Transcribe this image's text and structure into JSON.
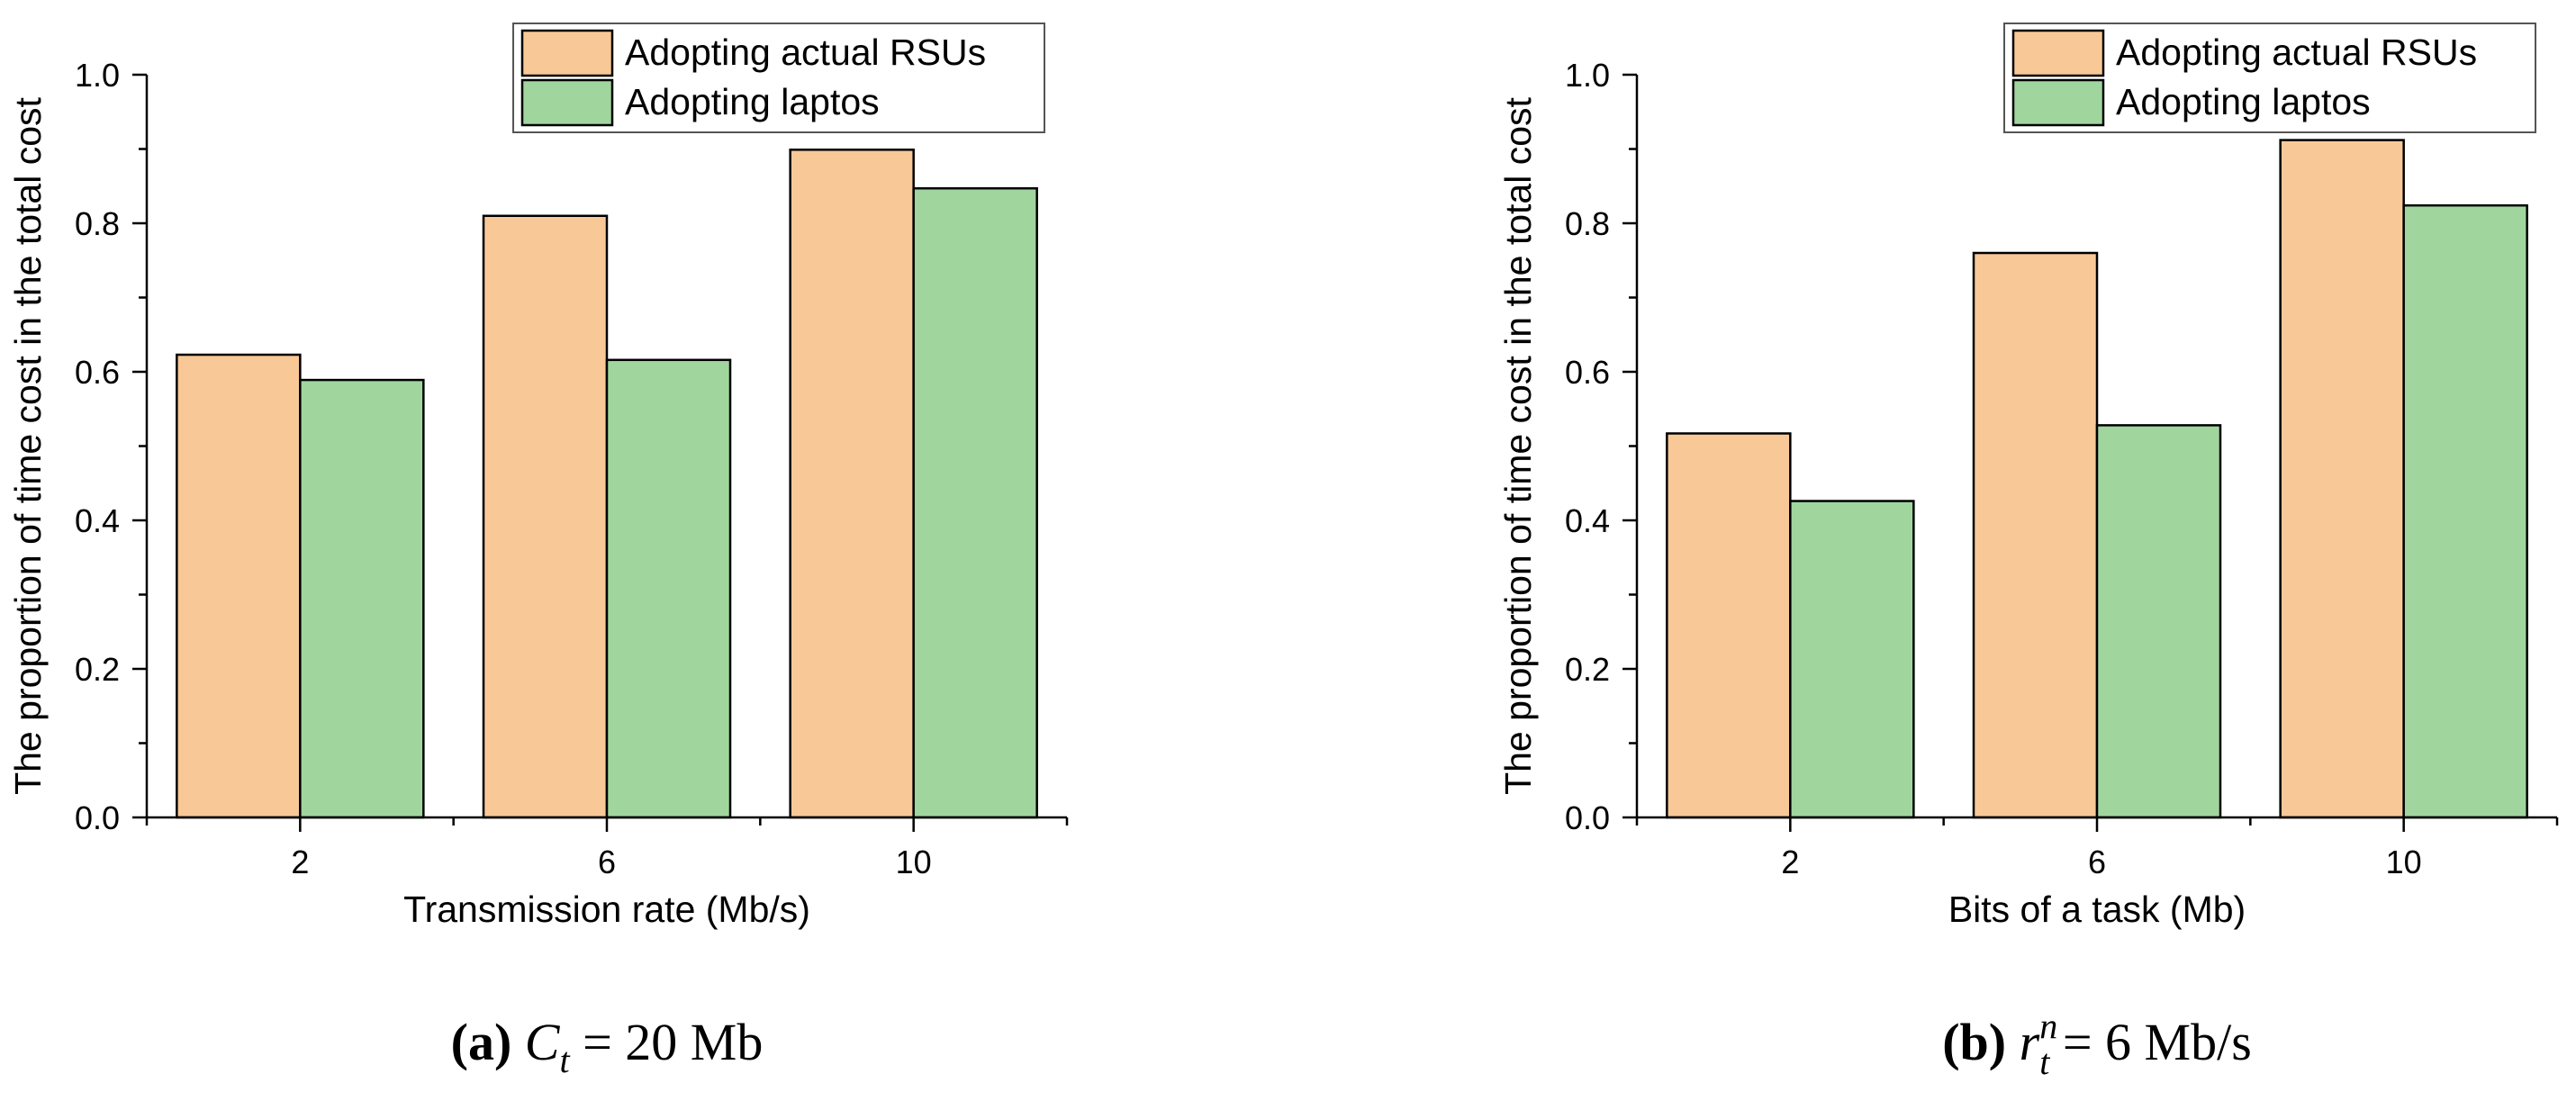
{
  "colors": {
    "series_1": "#f9c897",
    "series_2": "#a0d69e",
    "axis": "#000000"
  },
  "chart_data": [
    {
      "type": "bar",
      "categories": [
        "2",
        "6",
        "10"
      ],
      "series": [
        {
          "name": "Adopting actual RSUs",
          "values": [
            0.623,
            0.81,
            0.899
          ]
        },
        {
          "name": "Adopting laptos",
          "values": [
            0.589,
            0.616,
            0.847
          ]
        }
      ],
      "xlabel": "Transmission rate (Mb/s)",
      "ylabel": "The proportion of time cost in the total cost",
      "ylim": [
        0,
        1.0
      ],
      "yticks": [
        "0.0",
        "0.2",
        "0.4",
        "0.6",
        "0.8",
        "1.0"
      ],
      "grid": false,
      "legend_position": "top-right",
      "caption": {
        "label": "(a)",
        "symbol": "C",
        "subscript": "t",
        "superscript": "",
        "text": "= 20 Mb"
      }
    },
    {
      "type": "bar",
      "categories": [
        "2",
        "6",
        "10"
      ],
      "series": [
        {
          "name": "Adopting actual RSUs",
          "values": [
            0.517,
            0.76,
            0.912
          ]
        },
        {
          "name": "Adopting laptos",
          "values": [
            0.426,
            0.528,
            0.824
          ]
        }
      ],
      "xlabel": "Bits of a task (Mb)",
      "ylabel": "The proportion of time cost in the total cost",
      "ylim": [
        0,
        1.0
      ],
      "yticks": [
        "0.0",
        "0.2",
        "0.4",
        "0.6",
        "0.8",
        "1.0"
      ],
      "grid": false,
      "legend_position": "top-right",
      "caption": {
        "label": "(b)",
        "symbol": "r",
        "subscript": "t",
        "superscript": "n",
        "text": "= 6 Mb/s"
      }
    }
  ]
}
